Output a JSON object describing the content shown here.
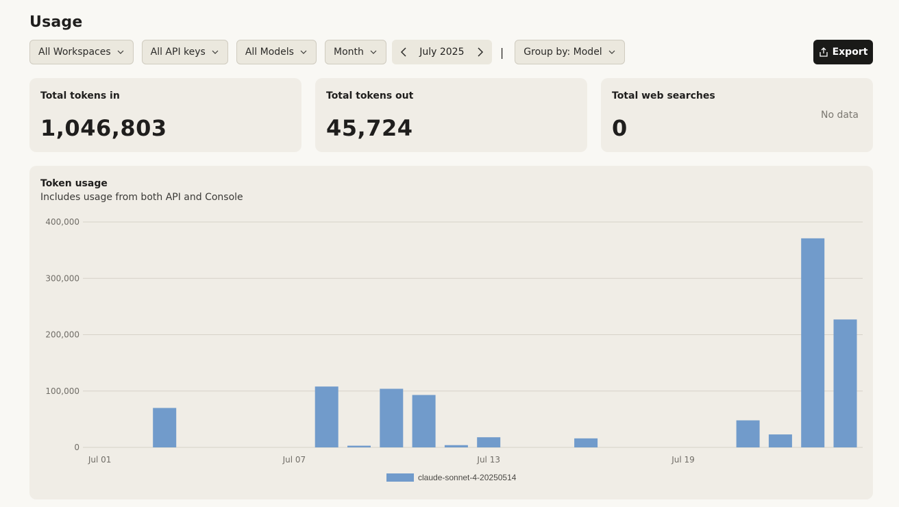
{
  "page": {
    "title": "Usage"
  },
  "filters": {
    "workspaces": "All Workspaces",
    "api_keys": "All API keys",
    "models": "All Models",
    "period": "Month",
    "date": "July 2025",
    "separator": "|",
    "group_by": "Group by: Model"
  },
  "export": {
    "label": "Export"
  },
  "stats": {
    "tokens_in": {
      "label": "Total tokens in",
      "value": "1,046,803"
    },
    "tokens_out": {
      "label": "Total tokens out",
      "value": "45,724"
    },
    "web_searches": {
      "label": "Total web searches",
      "value": "0",
      "note": "No data"
    }
  },
  "chart_card": {
    "title": "Token usage",
    "subtitle": "Includes usage from both API and Console"
  },
  "colors": {
    "bar": "#719bcb",
    "grid": "#d6d2c8",
    "axis_text": "#6f6c66"
  },
  "chart_data": {
    "type": "bar",
    "title": "Token usage",
    "subtitle": "Includes usage from both API and Console",
    "xlabel": "",
    "ylabel": "",
    "ylim": [
      0,
      400000
    ],
    "yticks": [
      0,
      100000,
      200000,
      300000,
      400000
    ],
    "ytick_labels": [
      "0",
      "100,000",
      "200,000",
      "300,000",
      "400,000"
    ],
    "xtick_labels": [
      {
        "label": "Jul 01",
        "day": 1
      },
      {
        "label": "Jul 07",
        "day": 7
      },
      {
        "label": "Jul 13",
        "day": 13
      },
      {
        "label": "Jul 19",
        "day": 19
      }
    ],
    "categories": [
      "Jul 01",
      "Jul 02",
      "Jul 03",
      "Jul 04",
      "Jul 05",
      "Jul 06",
      "Jul 07",
      "Jul 08",
      "Jul 09",
      "Jul 10",
      "Jul 11",
      "Jul 12",
      "Jul 13",
      "Jul 14",
      "Jul 15",
      "Jul 16",
      "Jul 17",
      "Jul 18",
      "Jul 19",
      "Jul 20",
      "Jul 21",
      "Jul 22",
      "Jul 23",
      "Jul 24"
    ],
    "series": [
      {
        "name": "claude-sonnet-4-20250514",
        "color": "#719bcb",
        "values": [
          0,
          0,
          70000,
          0,
          0,
          0,
          0,
          108000,
          3000,
          104000,
          93000,
          4000,
          18000,
          0,
          0,
          16000,
          0,
          0,
          0,
          0,
          48000,
          23000,
          371000,
          227000
        ]
      }
    ],
    "grid": true,
    "legend": "bottom-center"
  }
}
